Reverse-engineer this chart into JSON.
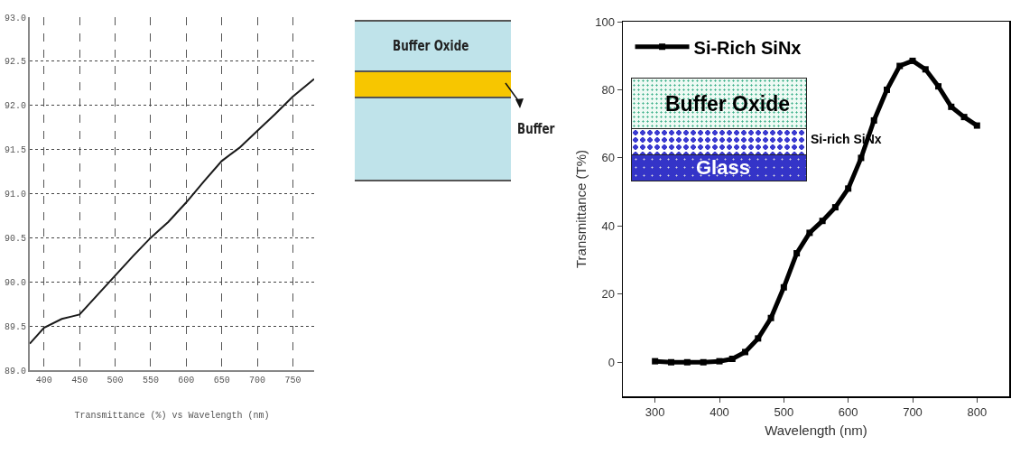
{
  "chart_data": [
    {
      "type": "line",
      "xlabel": "Transmittance (%) vs Wavelength (nm)",
      "annotations": [
        "Buffer Oxide",
        "Buffer"
      ],
      "x": [
        380,
        400,
        425,
        440,
        450,
        475,
        500,
        525,
        550,
        575,
        600,
        625,
        650,
        675,
        700,
        725,
        750,
        780
      ],
      "series": [
        {
          "color": "#1a1a1a",
          "values": [
            89.3,
            89.48,
            89.58,
            89.61,
            89.63,
            89.85,
            90.07,
            90.29,
            90.5,
            90.68,
            90.9,
            91.14,
            91.37,
            91.52,
            91.71,
            91.9,
            92.1,
            92.3
          ]
        }
      ],
      "xlim": [
        380,
        780
      ],
      "xticks": [
        400,
        450,
        500,
        550,
        600,
        650,
        700,
        750
      ],
      "ylim": [
        89,
        93
      ],
      "yticks": [
        {
          "value": 89,
          "label": "89.0"
        },
        89.5,
        {
          "value": 90,
          "label": "90.0"
        },
        90.5,
        {
          "value": 91,
          "label": "91.0"
        },
        91.5,
        {
          "value": 92,
          "label": "92.0"
        },
        92.5,
        {
          "value": 93,
          "label": "93.0"
        }
      ],
      "grid": true,
      "legend": false,
      "marker": "none"
    },
    {
      "type": "line",
      "xlabel": "Wavelength (nm)",
      "ylabel": "Transmittance (T%)",
      "annotations": [
        "Buffer Oxide",
        "Si-rich SiNx",
        "Glass"
      ],
      "x": [
        300,
        325,
        350,
        375,
        400,
        420,
        440,
        460,
        480,
        500,
        520,
        540,
        560,
        580,
        600,
        620,
        640,
        660,
        680,
        700,
        720,
        740,
        760,
        780,
        800
      ],
      "series": [
        {
          "name": "Si-Rich SiNx",
          "color": "#000000",
          "values": [
            0.3,
            0,
            0,
            0,
            0.3,
            1,
            3,
            7,
            13,
            22,
            32,
            38,
            41.5,
            45.5,
            51,
            60,
            71,
            80,
            87,
            88.5,
            86,
            81,
            75,
            72,
            69.5
          ]
        }
      ],
      "xlim": [
        250,
        850
      ],
      "xticks": [
        300,
        400,
        500,
        600,
        700,
        800
      ],
      "ylim": [
        -10,
        100
      ],
      "yticks": [
        0,
        20,
        40,
        60,
        80,
        100
      ],
      "grid": false,
      "legend": "top left",
      "marker": "square"
    }
  ]
}
